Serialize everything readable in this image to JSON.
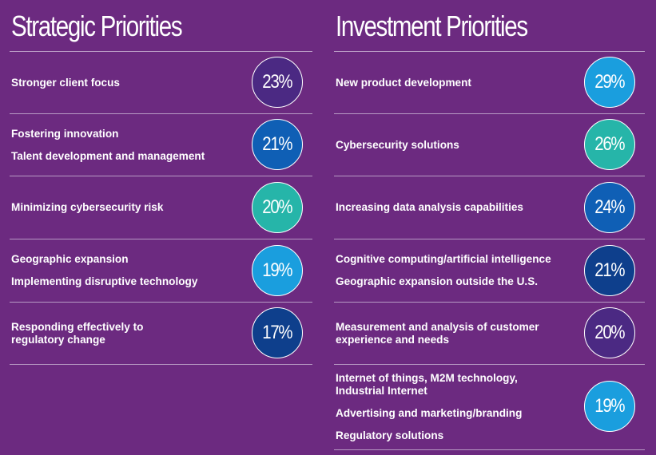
{
  "strategic": {
    "title": "Strategic Priorities",
    "rows": [
      {
        "labels": [
          "Stronger client focus"
        ],
        "pct": "23%",
        "color": "#4b2983"
      },
      {
        "labels": [
          "Fostering innovation",
          "Talent development and management"
        ],
        "pct": "21%",
        "color": "#0f5fb5"
      },
      {
        "labels": [
          "Minimizing cybersecurity risk"
        ],
        "pct": "20%",
        "color": "#26b5a9"
      },
      {
        "labels": [
          "Geographic expansion",
          "Implementing disruptive technology"
        ],
        "pct": "19%",
        "color": "#1a9ede"
      },
      {
        "labels": [
          "Responding effectively to regulatory change"
        ],
        "pct": "17%",
        "color": "#0e3f8c"
      }
    ]
  },
  "investment": {
    "title": "Investment Priorities",
    "rows": [
      {
        "labels": [
          "New product development"
        ],
        "pct": "29%",
        "color": "#1a9ede"
      },
      {
        "labels": [
          "Cybersecurity solutions"
        ],
        "pct": "26%",
        "color": "#26b5a9"
      },
      {
        "labels": [
          "Increasing data analysis capabilities"
        ],
        "pct": "24%",
        "color": "#0f5fb5"
      },
      {
        "labels": [
          "Cognitive computing/artificial intelligence",
          "Geographic expansion outside the U.S."
        ],
        "pct": "21%",
        "color": "#0e3f8c"
      },
      {
        "labels": [
          "Measurement and analysis of customer experience and needs"
        ],
        "pct": "20%",
        "color": "#4b2983"
      },
      {
        "labels": [
          "Internet of things, M2M technology, Industrial Internet",
          "Advertising and marketing/branding",
          "Regulatory solutions"
        ],
        "pct": "19%",
        "color": "#1a9ede"
      }
    ]
  }
}
